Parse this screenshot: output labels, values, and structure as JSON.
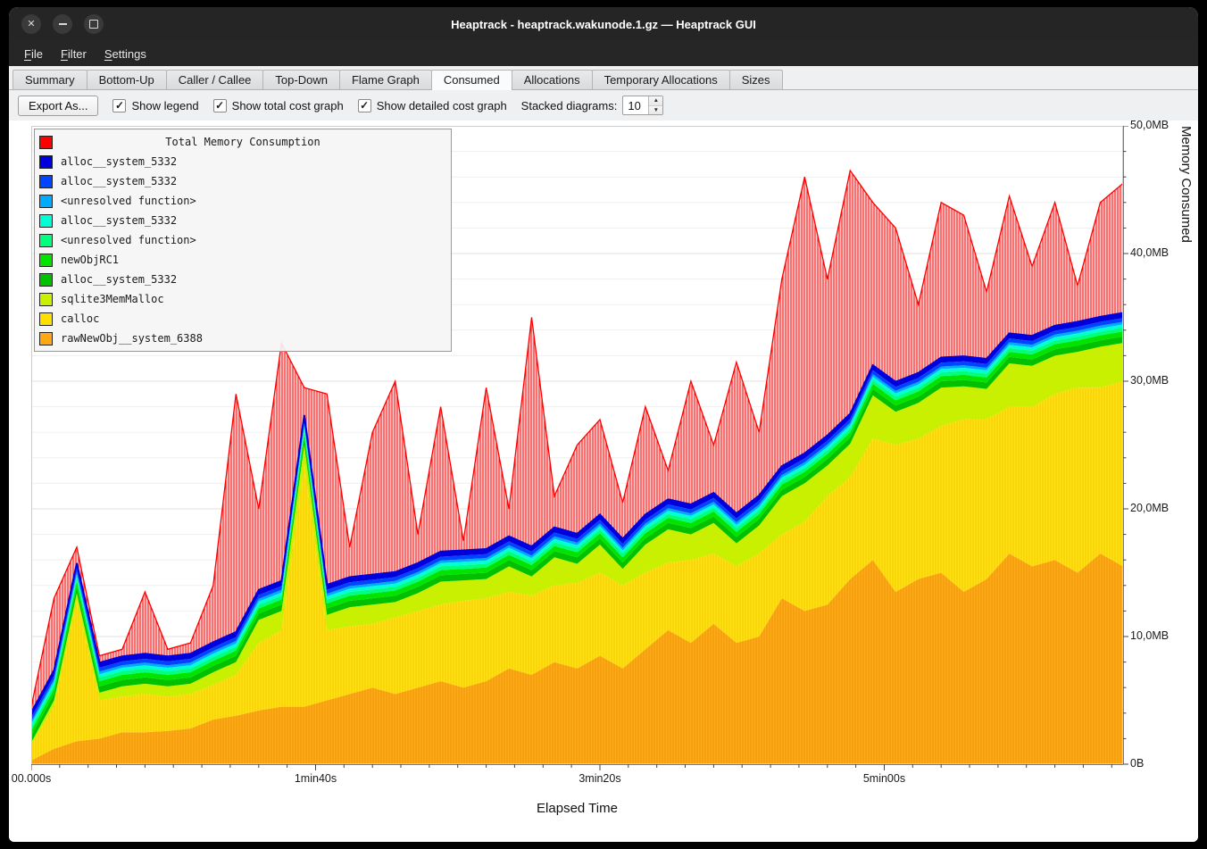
{
  "window": {
    "title": "Heaptrack - heaptrack.wakunode.1.gz — Heaptrack GUI",
    "icons": {
      "close": "✕",
      "minimize": "bar",
      "maximize": "square"
    }
  },
  "menubar": {
    "items": [
      {
        "label": "File"
      },
      {
        "label": "Filter"
      },
      {
        "label": "Settings"
      }
    ]
  },
  "tabs": [
    {
      "label": "Summary",
      "active": false
    },
    {
      "label": "Bottom-Up",
      "active": false
    },
    {
      "label": "Caller / Callee",
      "active": false
    },
    {
      "label": "Top-Down",
      "active": false
    },
    {
      "label": "Flame Graph",
      "active": false
    },
    {
      "label": "Consumed",
      "active": true
    },
    {
      "label": "Allocations",
      "active": false
    },
    {
      "label": "Temporary Allocations",
      "active": false
    },
    {
      "label": "Sizes",
      "active": false
    }
  ],
  "toolbar": {
    "export_button": "Export As...",
    "check_glyph": "✓",
    "checkboxes": [
      {
        "label": "Show legend",
        "checked": true
      },
      {
        "label": "Show total cost graph",
        "checked": true
      },
      {
        "label": "Show detailed cost graph",
        "checked": true
      }
    ],
    "stacked_label": "Stacked diagrams:",
    "stacked_value": "10",
    "spin_up": "▲",
    "spin_down": "▼"
  },
  "legend": {
    "title": "Total Memory Consumption",
    "title_color": "#ff0000",
    "entries": [
      {
        "label": "alloc__system_5332",
        "color": "#0000dd"
      },
      {
        "label": "alloc__system_5332",
        "color": "#0044ff"
      },
      {
        "label": "<unresolved function>",
        "color": "#00aaff"
      },
      {
        "label": "alloc__system_5332",
        "color": "#00ffd5"
      },
      {
        "label": "<unresolved function>",
        "color": "#00ff7f"
      },
      {
        "label": "newObjRC1",
        "color": "#00e400"
      },
      {
        "label": "alloc__system_5332",
        "color": "#00c000"
      },
      {
        "label": "sqlite3MemMalloc",
        "color": "#c8f000"
      },
      {
        "label": "calloc",
        "color": "#ffdf00"
      },
      {
        "label": "rawNewObj__system_6388",
        "color": "#ffa812"
      }
    ]
  },
  "chart_data": {
    "type": "area",
    "stacked": true,
    "title": "Total Memory Consumption",
    "xlabel": "Elapsed Time",
    "ylabel": "Memory Consumed",
    "unit": "MB",
    "xlim": [
      0,
      384
    ],
    "ylim": [
      0,
      50
    ],
    "x_minor_tick_step": 10,
    "y_minor_tick_step": 2,
    "x_ticks": [
      {
        "pos": 0,
        "label": "00.000s"
      },
      {
        "pos": 100,
        "label": "1min40s"
      },
      {
        "pos": 200,
        "label": "3min20s"
      },
      {
        "pos": 300,
        "label": "5min00s"
      }
    ],
    "y_ticks": [
      {
        "value": 0,
        "label": "0B"
      },
      {
        "value": 10,
        "label": "10,0MB"
      },
      {
        "value": 20,
        "label": "20,0MB"
      },
      {
        "value": 30,
        "label": "30,0MB"
      },
      {
        "value": 40,
        "label": "40,0MB"
      },
      {
        "value": 50,
        "label": "50,0MB"
      }
    ],
    "x": [
      0,
      8,
      16,
      24,
      32,
      40,
      48,
      56,
      64,
      72,
      80,
      88,
      96,
      104,
      112,
      120,
      128,
      136,
      144,
      152,
      160,
      168,
      176,
      184,
      192,
      200,
      208,
      216,
      224,
      232,
      240,
      248,
      256,
      264,
      272,
      280,
      288,
      296,
      304,
      312,
      320,
      328,
      336,
      344,
      352,
      360,
      368,
      376,
      384
    ],
    "series": [
      {
        "name": "rawNewObj__system_6388",
        "color": "#ffa812",
        "pattern": {
          "bg": "#ffac1c",
          "line": "#ef9500"
        },
        "values": [
          0.3,
          1.2,
          1.8,
          2.0,
          2.5,
          2.5,
          2.6,
          2.8,
          3.5,
          3.8,
          4.2,
          4.5,
          4.5,
          5.0,
          5.5,
          6.0,
          5.5,
          6.0,
          6.5,
          6.0,
          6.5,
          7.5,
          7.0,
          8.0,
          7.5,
          8.5,
          7.5,
          9.0,
          10.5,
          9.5,
          11.0,
          9.5,
          10.0,
          13.0,
          12.0,
          12.5,
          14.5,
          16.0,
          13.5,
          14.5,
          15.0,
          13.5,
          14.5,
          16.5,
          15.5,
          16.0,
          15.0,
          16.5,
          15.5
        ]
      },
      {
        "name": "calloc",
        "color": "#ffdf00",
        "pattern": {
          "bg": "#ffe114",
          "line": "#f2cc00"
        },
        "values": [
          1.2,
          3.3,
          11.0,
          3.0,
          2.8,
          3.0,
          2.7,
          2.7,
          2.7,
          3.2,
          5.3,
          6.0,
          19.0,
          5.5,
          5.3,
          5.0,
          6.0,
          6.0,
          6.0,
          6.8,
          6.5,
          6.0,
          6.2,
          6.0,
          6.7,
          6.5,
          6.5,
          6.0,
          5.3,
          6.5,
          5.5,
          6.0,
          6.5,
          5.0,
          7.0,
          8.5,
          8.0,
          9.5,
          11.5,
          11.0,
          11.5,
          13.5,
          12.5,
          11.5,
          12.5,
          13.0,
          14.5,
          13.0,
          14.5
        ]
      },
      {
        "name": "sqlite3MemMalloc",
        "color": "#c8f000",
        "values": [
          0.2,
          0.5,
          0.6,
          0.6,
          0.8,
          0.8,
          0.8,
          0.8,
          1.0,
          1.0,
          1.8,
          1.5,
          1.5,
          1.2,
          1.5,
          1.5,
          1.2,
          1.4,
          1.8,
          1.6,
          1.5,
          2.0,
          1.5,
          2.2,
          1.5,
          2.2,
          1.3,
          2.2,
          2.6,
          2.0,
          2.4,
          1.8,
          2.2,
          3.0,
          3.0,
          2.4,
          2.6,
          3.4,
          2.6,
          2.8,
          3.0,
          2.6,
          2.4,
          3.4,
          3.2,
          3.0,
          2.8,
          3.2,
          3.0
        ]
      },
      {
        "name": "alloc__system_5332",
        "color": "#00c000",
        "constant": 0.5
      },
      {
        "name": "newObjRC1",
        "color": "#00e400",
        "constant": 0.4
      },
      {
        "name": "<unresolved function>",
        "color": "#00ff7f",
        "constant": 0.3
      },
      {
        "name": "alloc__system_5332",
        "color": "#00ffd5",
        "constant": 0.25
      },
      {
        "name": "<unresolved function>",
        "color": "#00aaff",
        "constant": 0.2
      },
      {
        "name": "alloc__system_5332",
        "color": "#0044ff",
        "constant": 0.3
      },
      {
        "name": "alloc__system_5332",
        "color": "#0000dd",
        "constant": 0.4
      }
    ],
    "total": {
      "name": "Total Memory Consumption",
      "color": "#ff0000",
      "pattern": {
        "bg": "#ffc9c9",
        "line": "#f31616"
      },
      "values": [
        4.5,
        13.0,
        17.0,
        8.5,
        9.0,
        13.5,
        9.0,
        9.5,
        14.0,
        29.0,
        20.0,
        33.0,
        29.5,
        29.0,
        17.0,
        26.0,
        30.0,
        18.0,
        28.0,
        17.5,
        29.5,
        20.0,
        35.0,
        21.0,
        25.0,
        27.0,
        20.5,
        28.0,
        23.0,
        30.0,
        25.0,
        31.5,
        26.0,
        38.0,
        46.0,
        38.0,
        46.5,
        44.0,
        42.0,
        36.0,
        44.0,
        43.0,
        37.0,
        44.5,
        39.0,
        44.0,
        37.5,
        44.0,
        45.5
      ]
    }
  }
}
